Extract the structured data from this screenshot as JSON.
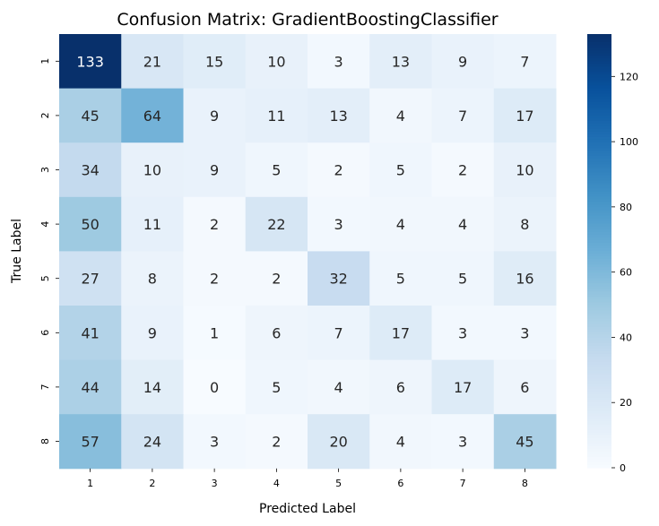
{
  "chart_data": {
    "type": "heatmap",
    "title": "Confusion Matrix: GradientBoostingClassifier",
    "xlabel": "Predicted Label",
    "ylabel": "True Label",
    "x_categories": [
      "1",
      "2",
      "3",
      "4",
      "5",
      "6",
      "7",
      "8"
    ],
    "y_categories": [
      "1",
      "2",
      "3",
      "4",
      "5",
      "6",
      "7",
      "8"
    ],
    "values": [
      [
        133,
        21,
        15,
        10,
        3,
        13,
        9,
        7
      ],
      [
        45,
        64,
        9,
        11,
        13,
        4,
        7,
        17
      ],
      [
        34,
        10,
        9,
        5,
        2,
        5,
        2,
        10
      ],
      [
        50,
        11,
        2,
        22,
        3,
        4,
        4,
        8
      ],
      [
        27,
        8,
        2,
        2,
        32,
        5,
        5,
        16
      ],
      [
        41,
        9,
        1,
        6,
        7,
        17,
        3,
        3
      ],
      [
        44,
        14,
        0,
        5,
        4,
        6,
        17,
        6
      ],
      [
        57,
        24,
        3,
        2,
        20,
        4,
        3,
        45
      ]
    ],
    "colorbar": {
      "range": [
        0,
        133
      ],
      "ticks": [
        0,
        20,
        40,
        60,
        80,
        100,
        120
      ],
      "colormap": "Blues",
      "color_low": "#f7fbff",
      "color_high": "#08306b"
    }
  }
}
